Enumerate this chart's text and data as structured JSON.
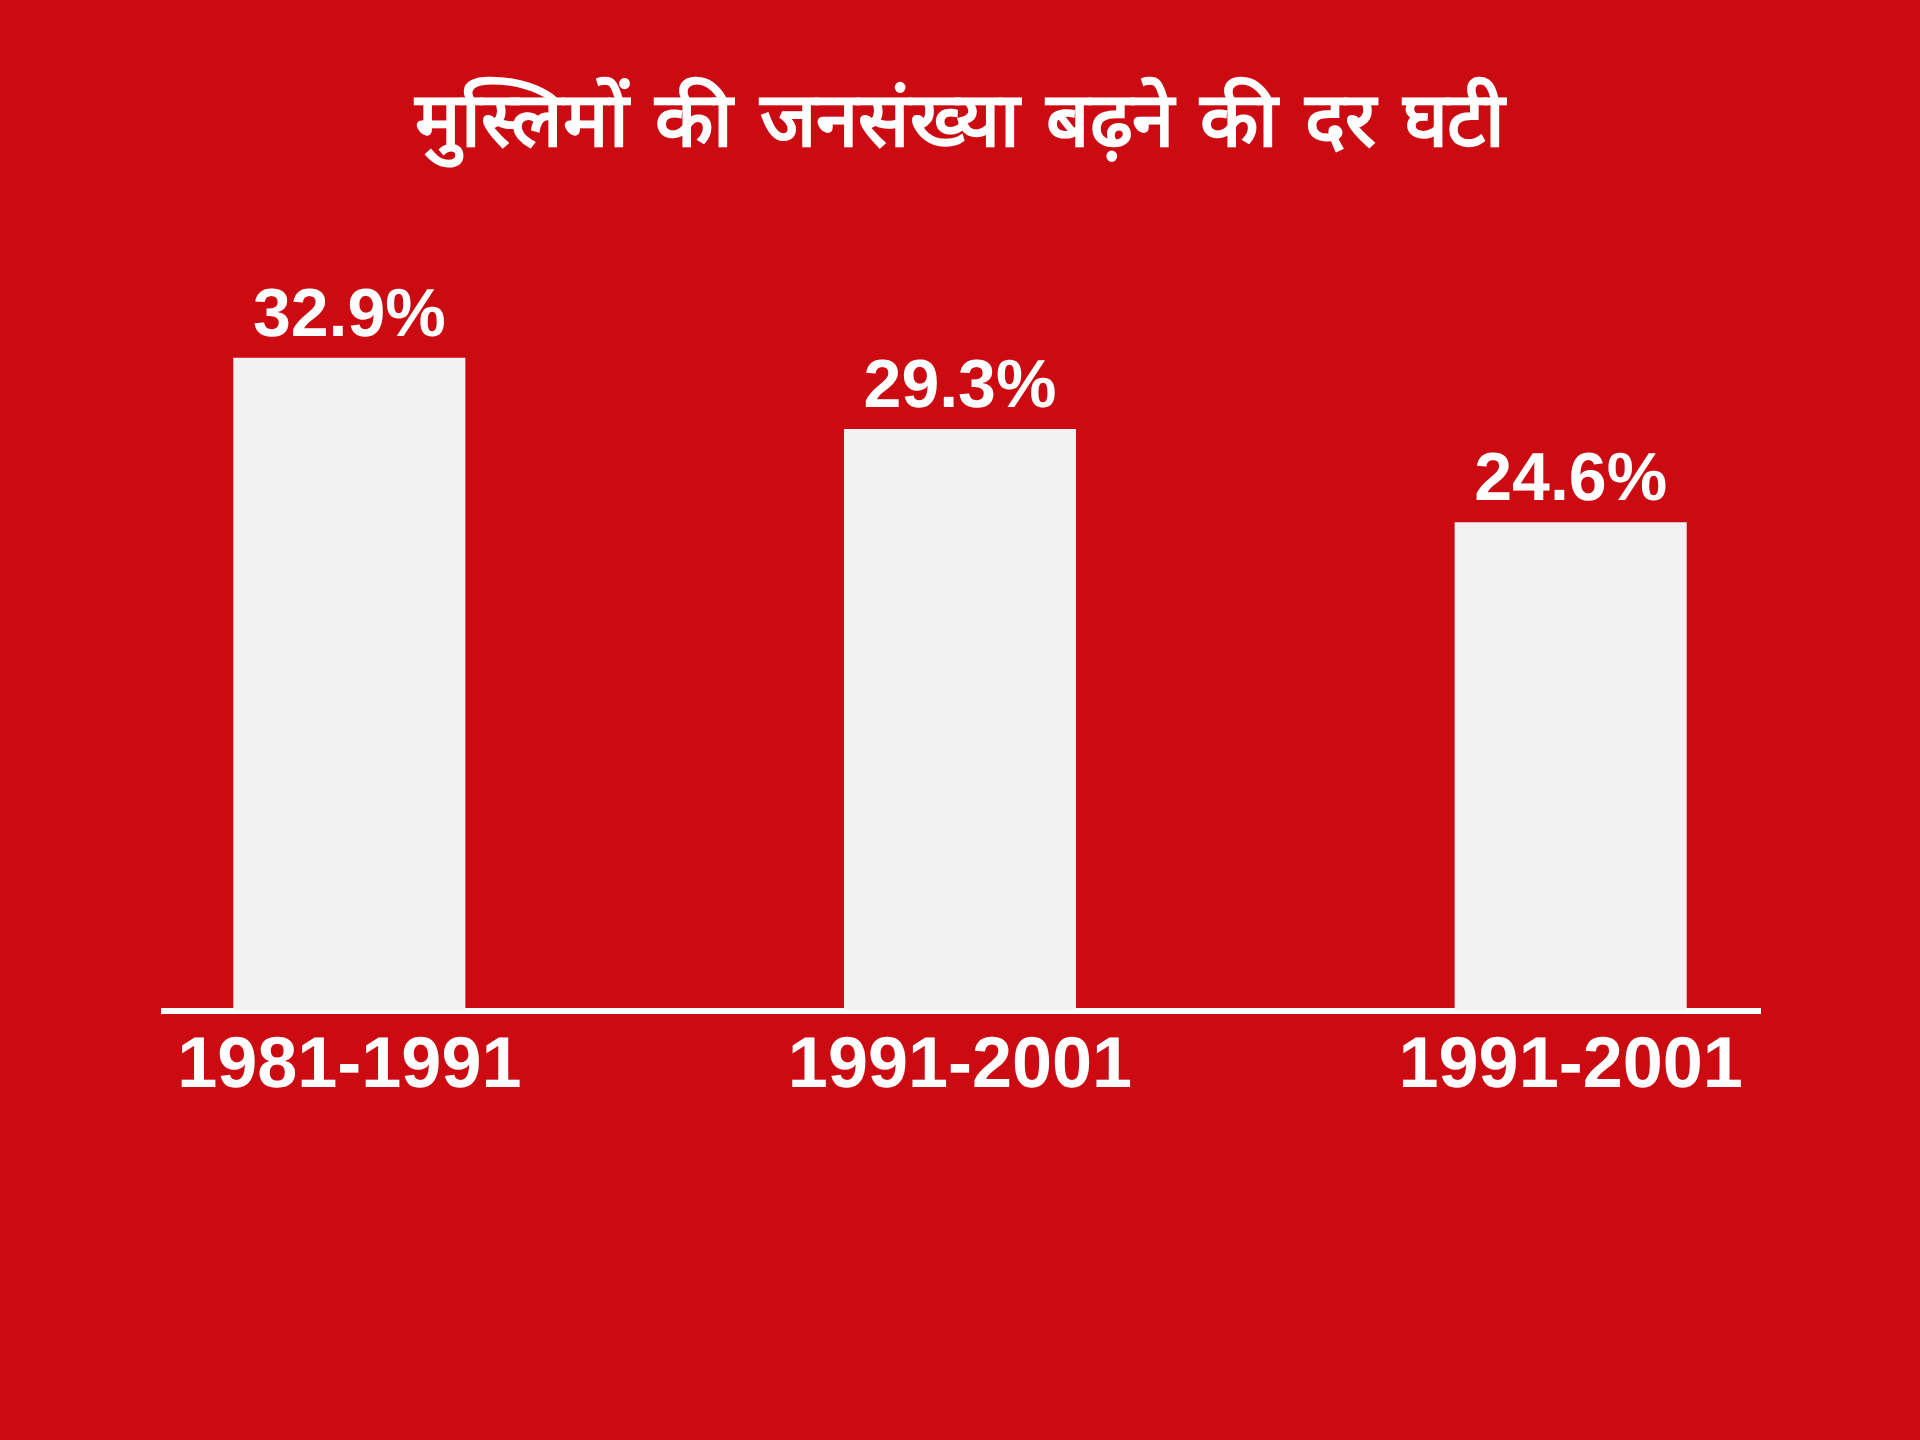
{
  "chart_data": {
    "type": "bar",
    "title": "मुस्लिमों की जनसंख्या बढ़ने की दर घटी",
    "categories": [
      "1981-1991",
      "1991-2001",
      "1991-2001"
    ],
    "values": [
      32.9,
      29.3,
      24.6
    ],
    "value_labels": [
      "32.9%",
      "29.3%",
      "24.6%"
    ],
    "color": "#f2f2f2"
  }
}
